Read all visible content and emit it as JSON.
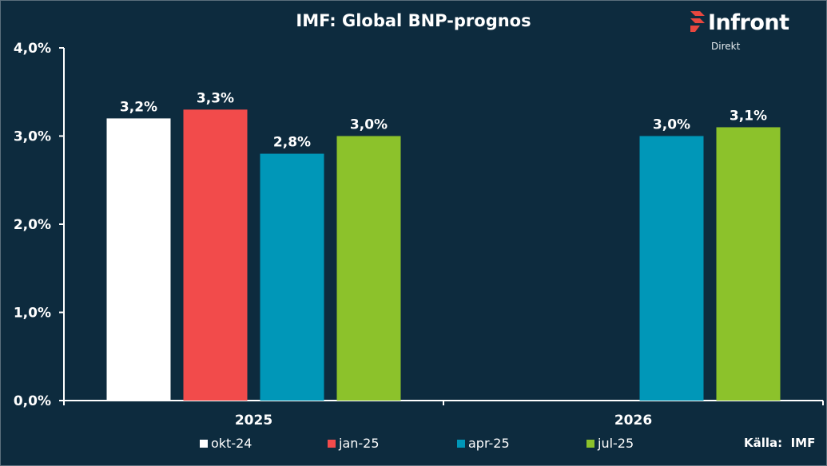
{
  "header": {
    "title": "IMF: Global BNP-prognos",
    "brand_name": "Infront",
    "brand_sub": "Direkt"
  },
  "source_label": "Källa:  IMF",
  "colors": {
    "background": "#0d2b3e",
    "axis": "#ffffff"
  },
  "chart_data": {
    "type": "bar",
    "title": "IMF: Global BNP-prognos",
    "xlabel": "",
    "ylabel": "",
    "categories": [
      "2025",
      "2026"
    ],
    "series": [
      {
        "name": "okt-24",
        "color": "#ffffff",
        "values": [
          3.2,
          null
        ],
        "labels": [
          "3,2%",
          ""
        ]
      },
      {
        "name": "jan-25",
        "color": "#f24b4b",
        "values": [
          3.3,
          null
        ],
        "labels": [
          "3,3%",
          ""
        ]
      },
      {
        "name": "apr-25",
        "color": "#0097b8",
        "values": [
          2.8,
          3.0
        ],
        "labels": [
          "2,8%",
          "3,0%"
        ]
      },
      {
        "name": "jul-25",
        "color": "#8cc22b",
        "values": [
          3.0,
          3.1
        ],
        "labels": [
          "3,0%",
          "3,1%"
        ]
      }
    ],
    "ylim": [
      0,
      4
    ],
    "yticks": [
      0,
      1,
      2,
      3,
      4
    ],
    "ytick_labels": [
      "0,0%",
      "1,0%",
      "2,0%",
      "3,0%",
      "4,0%"
    ],
    "grid": false,
    "legend_position": "bottom"
  }
}
